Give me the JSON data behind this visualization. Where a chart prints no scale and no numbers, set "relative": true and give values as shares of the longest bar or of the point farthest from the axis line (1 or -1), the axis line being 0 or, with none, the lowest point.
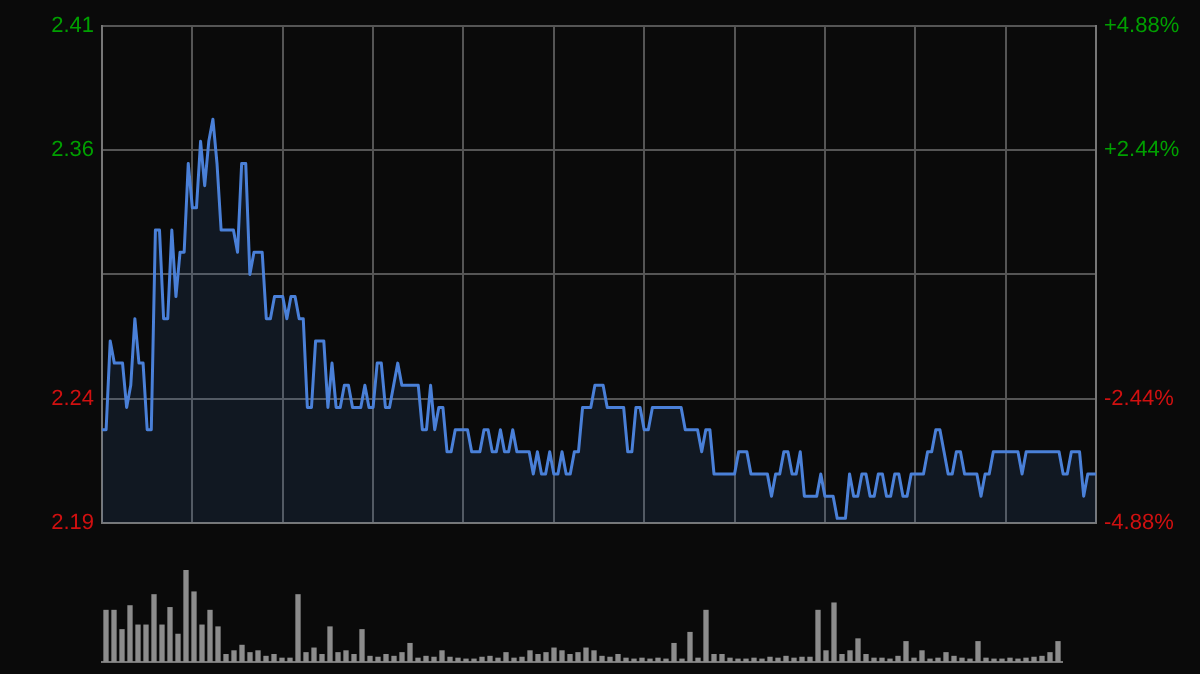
{
  "chart_data": [
    {
      "type": "area",
      "categories": [
        null,
        null,
        null,
        null,
        null,
        null,
        null,
        null,
        null,
        null,
        null,
        null,
        null,
        null,
        null,
        null,
        null,
        null,
        null,
        null,
        null,
        null,
        null,
        null,
        null,
        null,
        null,
        null,
        null,
        null,
        null,
        null,
        null,
        null,
        null,
        null,
        null,
        null,
        null,
        null,
        null,
        null,
        null,
        null,
        null,
        null,
        null,
        null,
        null,
        null,
        null,
        null,
        null,
        null,
        null,
        null,
        null,
        null,
        null,
        null,
        null,
        null,
        null,
        null,
        null,
        null,
        null,
        null,
        null,
        null,
        null,
        null,
        null,
        null,
        null,
        null,
        null,
        null,
        null,
        null,
        null,
        null,
        null,
        null,
        null,
        null,
        null,
        null,
        null,
        null,
        null,
        null,
        null,
        null,
        null,
        null,
        null,
        null,
        null,
        null,
        null,
        null,
        null,
        null,
        null,
        null,
        null,
        null,
        null,
        null,
        null,
        null,
        null,
        null,
        null,
        null,
        null,
        null,
        null,
        null,
        null,
        null,
        null,
        null,
        null,
        null,
        null,
        null,
        null,
        null,
        null,
        null,
        null,
        null,
        null,
        null,
        null,
        null,
        null,
        null,
        null,
        null,
        null,
        null,
        null,
        null,
        null,
        null,
        null,
        null,
        null,
        null,
        null,
        null,
        null,
        null,
        null,
        null,
        null,
        null,
        null,
        null,
        null,
        null,
        null,
        null,
        null,
        null,
        null,
        null,
        null,
        null,
        null,
        null,
        null,
        null,
        null,
        null,
        null,
        null,
        null,
        null,
        null,
        null,
        null,
        null,
        null,
        null,
        null,
        null,
        null,
        null,
        null,
        null,
        null,
        null,
        null,
        null,
        null,
        null,
        null,
        null,
        null,
        null,
        null,
        null,
        null,
        null,
        null,
        null,
        null,
        null,
        null,
        null,
        null,
        null,
        null,
        null,
        null,
        null,
        null,
        null,
        null,
        null,
        null,
        null,
        null,
        null,
        null,
        null,
        null,
        null,
        null,
        null,
        null,
        null,
        null,
        null,
        null,
        null,
        null,
        null,
        null
      ],
      "series": [
        {
          "color": "#4a80d8",
          "values": [
            2.23,
            2.23,
            2.27,
            2.26,
            2.26,
            2.26,
            2.24,
            2.25,
            2.28,
            2.26,
            2.26,
            2.23,
            2.23,
            2.32,
            2.32,
            2.28,
            2.28,
            2.32,
            2.29,
            2.31,
            2.31,
            2.35,
            2.33,
            2.33,
            2.36,
            2.34,
            2.36,
            2.37,
            2.35,
            2.32,
            2.32,
            2.32,
            2.32,
            2.31,
            2.35,
            2.35,
            2.3,
            2.31,
            2.31,
            2.31,
            2.28,
            2.28,
            2.29,
            2.29,
            2.29,
            2.28,
            2.29,
            2.29,
            2.28,
            2.28,
            2.24,
            2.24,
            2.27,
            2.27,
            2.27,
            2.24,
            2.26,
            2.24,
            2.24,
            2.25,
            2.25,
            2.24,
            2.24,
            2.24,
            2.25,
            2.24,
            2.24,
            2.26,
            2.26,
            2.24,
            2.24,
            2.25,
            2.26,
            2.25,
            2.25,
            2.25,
            2.25,
            2.25,
            2.23,
            2.23,
            2.25,
            2.23,
            2.24,
            2.24,
            2.22,
            2.22,
            2.23,
            2.23,
            2.23,
            2.23,
            2.22,
            2.22,
            2.22,
            2.23,
            2.23,
            2.22,
            2.22,
            2.23,
            2.22,
            2.22,
            2.23,
            2.22,
            2.22,
            2.22,
            2.22,
            2.21,
            2.22,
            2.21,
            2.21,
            2.22,
            2.21,
            2.21,
            2.22,
            2.21,
            2.21,
            2.22,
            2.22,
            2.24,
            2.24,
            2.24,
            2.25,
            2.25,
            2.25,
            2.24,
            2.24,
            2.24,
            2.24,
            2.24,
            2.22,
            2.22,
            2.24,
            2.24,
            2.23,
            2.23,
            2.24,
            2.24,
            2.24,
            2.24,
            2.24,
            2.24,
            2.24,
            2.24,
            2.23,
            2.23,
            2.23,
            2.23,
            2.22,
            2.23,
            2.23,
            2.21,
            2.21,
            2.21,
            2.21,
            2.21,
            2.21,
            2.22,
            2.22,
            2.22,
            2.21,
            2.21,
            2.21,
            2.21,
            2.21,
            2.2,
            2.21,
            2.21,
            2.22,
            2.22,
            2.21,
            2.21,
            2.22,
            2.2,
            2.2,
            2.2,
            2.2,
            2.21,
            2.2,
            2.2,
            2.2,
            2.19,
            2.19,
            2.19,
            2.21,
            2.2,
            2.2,
            2.21,
            2.21,
            2.2,
            2.2,
            2.21,
            2.21,
            2.2,
            2.2,
            2.21,
            2.21,
            2.2,
            2.2,
            2.21,
            2.21,
            2.21,
            2.21,
            2.22,
            2.22,
            2.23,
            2.23,
            2.22,
            2.21,
            2.21,
            2.22,
            2.22,
            2.21,
            2.21,
            2.21,
            2.21,
            2.2,
            2.21,
            2.21,
            2.22,
            2.22,
            2.22,
            2.22,
            2.22,
            2.22,
            2.22,
            2.21,
            2.22,
            2.22,
            2.22,
            2.22,
            2.22,
            2.22,
            2.22,
            2.22,
            2.22,
            2.21,
            2.21,
            2.22,
            2.22,
            2.22,
            2.2,
            2.21,
            2.21,
            2.21
          ]
        }
      ],
      "ylim": [
        2.188,
        2.412
      ],
      "yticks": [
        {
          "value": 2.188,
          "label": "2.19"
        },
        {
          "value": 2.244,
          "label": "2.24"
        },
        {
          "value": 2.3,
          "label": null
        },
        {
          "value": 2.356,
          "label": "2.36"
        },
        {
          "value": 2.412,
          "label": "2.41"
        }
      ],
      "y2lim": [
        -4.88,
        4.88
      ],
      "y2ticks": [
        {
          "value": -4.88,
          "label": "-4.88%"
        },
        {
          "value": -2.44,
          "label": "-2.44%"
        },
        {
          "value": 0,
          "label": null
        },
        {
          "value": 2.44,
          "label": "+2.44%"
        },
        {
          "value": 4.88,
          "label": "+4.88%"
        }
      ],
      "grid": true,
      "legend": false,
      "tick_labels": "y",
      "marker": "none",
      "line_style": "solid"
    },
    {
      "type": "bar",
      "relative": true,
      "legend": false,
      "tick_labels": false,
      "categories": [
        null,
        null,
        null,
        null,
        null,
        null,
        null,
        null,
        null,
        null,
        null,
        null,
        null,
        null,
        null,
        null,
        null,
        null,
        null,
        null,
        null,
        null,
        null,
        null,
        null,
        null,
        null,
        null,
        null,
        null,
        null,
        null,
        null,
        null,
        null,
        null,
        null,
        null,
        null,
        null,
        null,
        null,
        null,
        null,
        null,
        null,
        null,
        null,
        null,
        null,
        null,
        null,
        null,
        null,
        null,
        null,
        null,
        null,
        null,
        null,
        null,
        null,
        null,
        null,
        null,
        null,
        null,
        null,
        null,
        null,
        null,
        null,
        null,
        null,
        null,
        null,
        null,
        null,
        null,
        null,
        null,
        null,
        null,
        null,
        null,
        null,
        null,
        null,
        null,
        null,
        null,
        null,
        null,
        null,
        null,
        null,
        null,
        null,
        null,
        null,
        null,
        null,
        null,
        null,
        null,
        null,
        null,
        null,
        null,
        null,
        null,
        null,
        null,
        null,
        null,
        null,
        null,
        null,
        null,
        null
      ],
      "series": [
        {
          "color": "#8c8c8c",
          "values": [
            0.56,
            0.56,
            0.35,
            0.61,
            0.4,
            0.4,
            0.73,
            0.4,
            0.59,
            0.3,
            1,
            0.76,
            0.4,
            0.56,
            0.38,
            0.08,
            0.12,
            0.18,
            0.1,
            0.12,
            0.06,
            0.08,
            0.04,
            0.04,
            0.73,
            0.1,
            0.15,
            0.08,
            0.38,
            0.1,
            0.12,
            0.08,
            0.35,
            0.06,
            0.05,
            0.08,
            0.06,
            0.1,
            0.2,
            0.04,
            0.06,
            0.05,
            0.12,
            0.05,
            0.04,
            0.03,
            0.03,
            0.05,
            0.06,
            0.04,
            0.1,
            0.04,
            0.05,
            0.12,
            0.08,
            0.1,
            0.15,
            0.12,
            0.08,
            0.1,
            0.15,
            0.12,
            0.06,
            0.05,
            0.08,
            0.04,
            0.03,
            0.04,
            0.03,
            0.04,
            0.03,
            0.2,
            0.03,
            0.32,
            0.04,
            0.56,
            0.08,
            0.08,
            0.04,
            0.03,
            0.03,
            0.04,
            0.03,
            0.05,
            0.04,
            0.06,
            0.04,
            0.05,
            0.05,
            0.56,
            0.12,
            0.64,
            0.08,
            0.12,
            0.25,
            0.08,
            0.04,
            0.04,
            0.03,
            0.06,
            0.22,
            0.04,
            0.12,
            0.03,
            0.04,
            0.1,
            0.06,
            0.04,
            0.03,
            0.22,
            0.04,
            0.03,
            0.03,
            0.04,
            0.03,
            0.04,
            0.05,
            0.06,
            0.1,
            0.22
          ]
        }
      ]
    }
  ]
}
